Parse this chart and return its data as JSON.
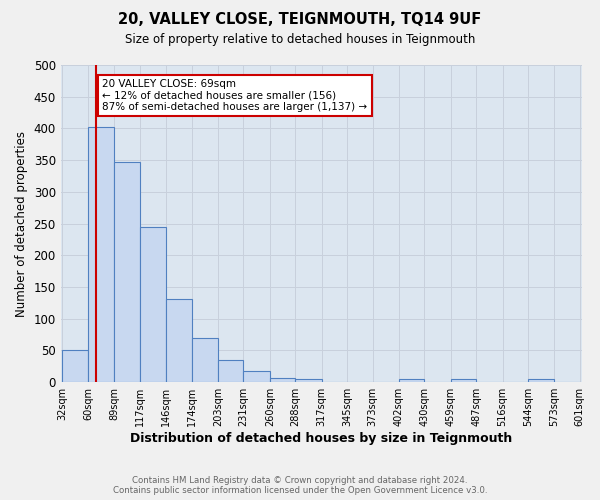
{
  "title": "20, VALLEY CLOSE, TEIGNMOUTH, TQ14 9UF",
  "subtitle": "Size of property relative to detached houses in Teignmouth",
  "xlabel": "Distribution of detached houses by size in Teignmouth",
  "ylabel": "Number of detached properties",
  "footer_line1": "Contains HM Land Registry data © Crown copyright and database right 2024.",
  "footer_line2": "Contains public sector information licensed under the Open Government Licence v3.0.",
  "bin_labels": [
    "32sqm",
    "60sqm",
    "89sqm",
    "117sqm",
    "146sqm",
    "174sqm",
    "203sqm",
    "231sqm",
    "260sqm",
    "288sqm",
    "317sqm",
    "345sqm",
    "373sqm",
    "402sqm",
    "430sqm",
    "459sqm",
    "487sqm",
    "516sqm",
    "544sqm",
    "573sqm",
    "601sqm"
  ],
  "bin_edges": [
    32,
    60,
    89,
    117,
    146,
    174,
    203,
    231,
    260,
    288,
    317,
    345,
    373,
    402,
    430,
    459,
    487,
    516,
    544,
    573,
    601
  ],
  "bar_values": [
    51,
    403,
    347,
    245,
    131,
    70,
    35,
    18,
    7,
    5,
    0,
    0,
    0,
    5,
    0,
    5,
    0,
    0,
    5,
    0
  ],
  "bar_color": "#c8d8f0",
  "bar_edge_color": "#5080c0",
  "property_line_x": 69,
  "property_line_color": "#cc0000",
  "annotation_text": "20 VALLEY CLOSE: 69sqm\n← 12% of detached houses are smaller (156)\n87% of semi-detached houses are larger (1,137) →",
  "annotation_box_color": "#ffffff",
  "annotation_box_edge_color": "#cc0000",
  "ylim": [
    0,
    500
  ],
  "yticks": [
    0,
    50,
    100,
    150,
    200,
    250,
    300,
    350,
    400,
    450,
    500
  ],
  "grid_color": "#c8d0dc",
  "background_color": "#dce6f0",
  "fig_background": "#f0f0f0"
}
